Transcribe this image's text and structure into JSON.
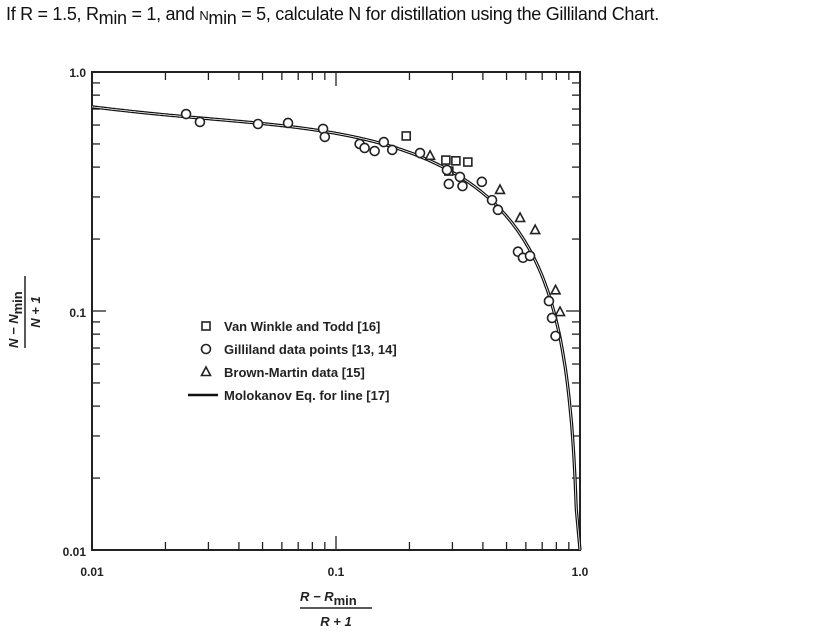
{
  "question": {
    "p1": "If R = 1.5, R",
    "p1_sub": "min",
    "p2": " = 1, and ",
    "p3": "N",
    "p3_sub": "min",
    "p4": " = 5, calculate N for distillation using the Gilliland Chart."
  },
  "chart_data": {
    "type": "scatter",
    "xscale": "log",
    "yscale": "log",
    "xlim": [
      0.01,
      1.0
    ],
    "ylim": [
      0.01,
      1.0
    ],
    "xticks": [
      "0.01",
      "0.1",
      "1.0"
    ],
    "yticks": [
      "0.01",
      "0.1",
      "1.0"
    ],
    "xlabel_num": "R − R",
    "xlabel_num_sub": "min",
    "xlabel_den": "R + 1",
    "ylabel_num": "N − N",
    "ylabel_num_sub": "min",
    "ylabel_den": "N + 1",
    "grid": false,
    "legend_placement": "center-left",
    "series": [
      {
        "name": "Van Winkle and Todd [16]",
        "marker": "square",
        "points": [
          [
            0.194,
            0.54
          ],
          [
            0.282,
            0.428
          ],
          [
            0.31,
            0.425
          ],
          [
            0.347,
            0.42
          ],
          [
            0.29,
            0.385
          ]
        ]
      },
      {
        "name": "Gilliland data points [13, 14]",
        "marker": "circle",
        "points": [
          [
            0.0243,
            0.667
          ],
          [
            0.0277,
            0.618
          ],
          [
            0.0479,
            0.606
          ],
          [
            0.0636,
            0.612
          ],
          [
            0.0885,
            0.578
          ],
          [
            0.09,
            0.535
          ],
          [
            0.125,
            0.5
          ],
          [
            0.131,
            0.481
          ],
          [
            0.144,
            0.467
          ],
          [
            0.157,
            0.509
          ],
          [
            0.17,
            0.472
          ],
          [
            0.221,
            0.458
          ],
          [
            0.285,
            0.389
          ],
          [
            0.29,
            0.34
          ],
          [
            0.322,
            0.364
          ],
          [
            0.33,
            0.333
          ],
          [
            0.396,
            0.347
          ],
          [
            0.436,
            0.291
          ],
          [
            0.461,
            0.265
          ],
          [
            0.557,
            0.177
          ],
          [
            0.584,
            0.167
          ],
          [
            0.624,
            0.17
          ],
          [
            0.746,
            0.11
          ],
          [
            0.768,
            0.0935
          ],
          [
            0.794,
            0.0786
          ]
        ]
      },
      {
        "name": "Brown-Martin data [15]",
        "marker": "triangle",
        "points": [
          [
            0.243,
            0.446
          ],
          [
            0.47,
            0.321
          ],
          [
            0.568,
            0.245
          ],
          [
            0.655,
            0.218
          ],
          [
            0.794,
            0.122
          ],
          [
            0.828,
            0.099
          ]
        ]
      },
      {
        "name": "Molokanov Eq. for line [17]",
        "marker": "line"
      }
    ]
  }
}
